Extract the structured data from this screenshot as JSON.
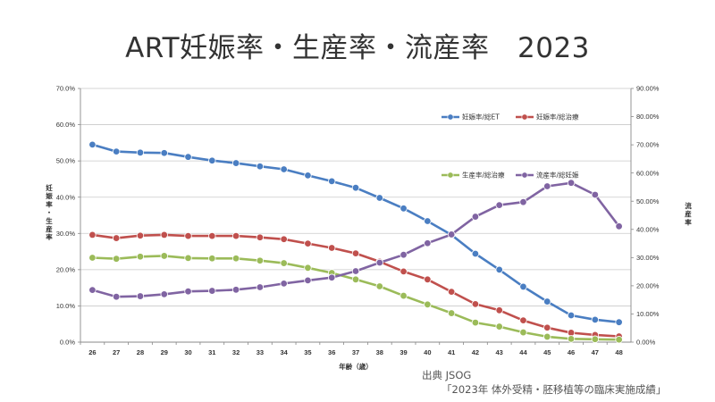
{
  "title": "ART妊娠率・生産率・流産率　2023",
  "source_prefix": "出典 JSOG",
  "source_ref": "「2023年 体外受精・胚移植等の臨床実施成績」",
  "chart_data": {
    "type": "line",
    "categories": [
      "26",
      "27",
      "28",
      "29",
      "30",
      "31",
      "32",
      "33",
      "34",
      "35",
      "36",
      "37",
      "38",
      "39",
      "40",
      "41",
      "42",
      "43",
      "44",
      "45",
      "46",
      "47",
      "48"
    ],
    "xlabel": "年齢（歳）",
    "ylabel_left": "妊娠率・生産率",
    "ylabel_right": "流産率",
    "ylim_left": [
      0,
      70
    ],
    "ylim_right": [
      0,
      90
    ],
    "yticks_left": [
      "0.0%",
      "10.0%",
      "20.0%",
      "30.0%",
      "40.0%",
      "50.0%",
      "60.0%",
      "70.0%"
    ],
    "yticks_right": [
      "0.00%",
      "10.00%",
      "20.00%",
      "30.00%",
      "40.00%",
      "50.00%",
      "60.00%",
      "70.00%",
      "80.00%",
      "90.00%"
    ],
    "grid": true,
    "series": [
      {
        "name": "妊娠率/総ET",
        "axis": "left",
        "color": "#4a7ec2",
        "values": [
          54.5,
          52.6,
          52.3,
          52.2,
          51.1,
          50.1,
          49.4,
          48.5,
          47.7,
          46.0,
          44.4,
          42.6,
          39.8,
          36.9,
          33.4,
          29.6,
          24.4,
          20.0,
          15.3,
          11.2,
          7.4,
          6.2,
          5.5
        ]
      },
      {
        "name": "妊娠率/総治療",
        "axis": "left",
        "color": "#c0504d",
        "values": [
          29.6,
          28.7,
          29.4,
          29.6,
          29.3,
          29.3,
          29.3,
          28.9,
          28.4,
          27.2,
          26.0,
          24.5,
          22.2,
          19.5,
          17.3,
          13.9,
          10.5,
          8.8,
          6.0,
          4.0,
          2.6,
          2.0,
          1.6
        ]
      },
      {
        "name": "生産率/総治療",
        "axis": "left",
        "color": "#9bbb59",
        "values": [
          23.3,
          23.0,
          23.6,
          23.8,
          23.2,
          23.1,
          23.1,
          22.5,
          21.8,
          20.5,
          19.1,
          17.3,
          15.4,
          12.8,
          10.4,
          8.0,
          5.4,
          4.3,
          2.7,
          1.5,
          0.9,
          0.8,
          0.7
        ]
      },
      {
        "name": "流産率/総妊娠",
        "axis": "right",
        "color": "#8064a2",
        "values": [
          18.5,
          16.1,
          16.3,
          17.0,
          18.0,
          18.2,
          18.6,
          19.5,
          20.8,
          21.9,
          22.9,
          25.2,
          28.2,
          31.0,
          35.1,
          38.2,
          44.5,
          48.6,
          49.7,
          55.3,
          56.5,
          52.3,
          41.1
        ]
      }
    ],
    "legend": "top-right"
  }
}
